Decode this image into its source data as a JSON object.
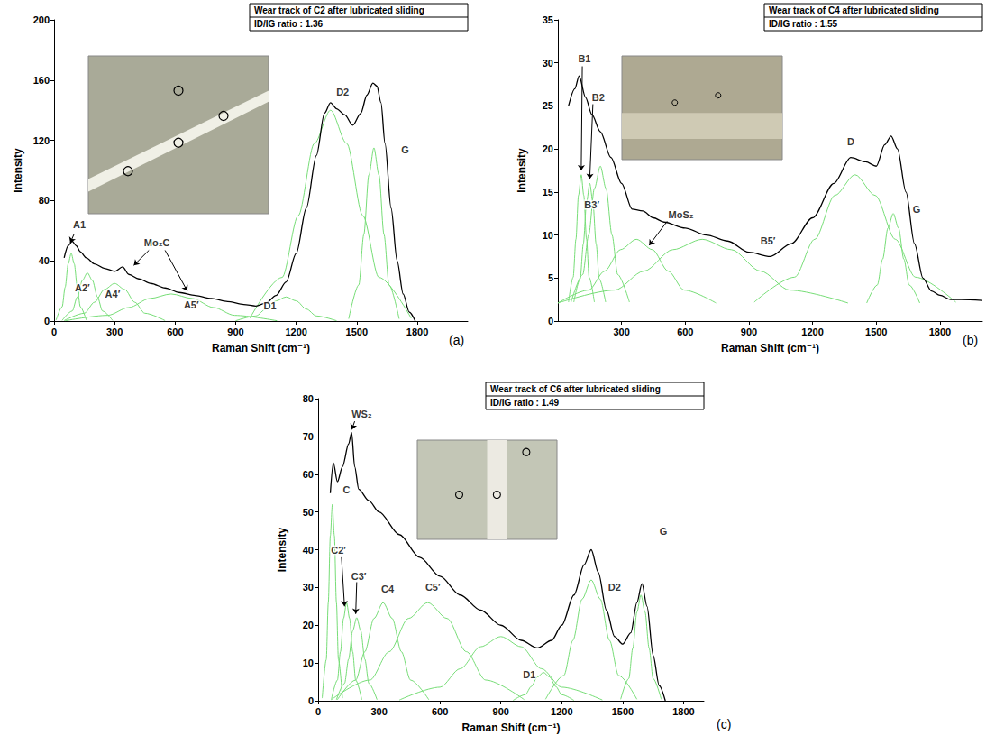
{
  "chart_data": [
    {
      "type": "line",
      "panel": "(a)",
      "title": "Wear track of C2 after lubricated sliding",
      "subtitle": "ID/IG ratio : 1.36",
      "x_label": "Raman Shift (cm⁻¹)",
      "y_label": "Intensity",
      "xlim": [
        0,
        2050
      ],
      "xticks": [
        0,
        300,
        600,
        900,
        1200,
        1500,
        1800
      ],
      "ylim": [
        0,
        200
      ],
      "yticks": [
        0,
        40,
        80,
        120,
        160,
        200
      ],
      "grid": false,
      "series": [
        {
          "color": "#000000",
          "x": [
            50,
            70,
            90,
            110,
            130,
            160,
            200,
            250,
            300,
            340,
            370,
            420,
            480,
            550,
            620,
            700,
            780,
            860,
            940,
            1000,
            1050,
            1100,
            1150,
            1200,
            1250,
            1300,
            1340,
            1370,
            1400,
            1440,
            1480,
            1520,
            1550,
            1580,
            1600,
            1620,
            1640,
            1670,
            1700,
            1730,
            1760,
            1790
          ],
          "values": [
            42,
            50,
            53,
            50,
            46,
            42,
            38,
            35,
            33,
            36,
            31,
            28,
            25,
            22,
            19,
            17,
            15,
            13,
            11,
            10,
            12,
            17,
            26,
            45,
            75,
            110,
            138,
            145,
            141,
            137,
            130,
            138,
            150,
            158,
            156,
            145,
            118,
            75,
            40,
            18,
            6,
            0
          ]
        },
        {
          "color": "#77dd77",
          "x": [
            10,
            40,
            55,
            70,
            85,
            100,
            115,
            130,
            160
          ],
          "values": [
            0.6,
            9.5,
            22.5,
            38,
            45,
            38,
            22.5,
            9.5,
            0.6
          ]
        },
        {
          "color": "#77dd77",
          "x": [
            40,
            90,
            115,
            140,
            165,
            190,
            215,
            240,
            290
          ],
          "values": [
            0.4,
            6.7,
            16,
            27,
            32,
            27,
            16,
            6.7,
            0.4
          ]
        },
        {
          "color": "#77dd77",
          "x": [
            50,
            150,
            200,
            250,
            300,
            350,
            400,
            450,
            550
          ],
          "values": [
            0.3,
            5.2,
            12.5,
            21,
            25,
            21,
            12.5,
            5.2,
            0.3
          ]
        },
        {
          "color": "#77dd77",
          "x": [
            55,
            265,
            370,
            475,
            580,
            685,
            790,
            895,
            1105
          ],
          "values": [
            0.2,
            3.8,
            9,
            15,
            18,
            15,
            9,
            3.8,
            0.2
          ]
        },
        {
          "color": "#77dd77",
          "x": [
            900,
            1000,
            1050,
            1100,
            1150,
            1200,
            1250,
            1300,
            1400
          ],
          "values": [
            0.2,
            3.4,
            8,
            13.4,
            16,
            13.4,
            8,
            3.4,
            0.2
          ]
        },
        {
          "color": "#77dd77",
          "x": [
            970,
            1130,
            1210,
            1290,
            1370,
            1450,
            1530,
            1610,
            1770
          ],
          "values": [
            1.8,
            29,
            70,
            118,
            140,
            118,
            70,
            29,
            1.8
          ]
        },
        {
          "color": "#77dd77",
          "x": [
            1460,
            1510,
            1535,
            1560,
            1585,
            1610,
            1635,
            1660,
            1710
          ],
          "values": [
            1.5,
            24,
            57.5,
            97,
            115,
            97,
            57.5,
            24,
            1.5
          ]
        }
      ],
      "annotations": [
        {
          "text": "A1",
          "x": 125,
          "y": 64,
          "arrows": [
            [
              [
                100,
                58
              ],
              [
                80,
                52
              ]
            ]
          ]
        },
        {
          "text": "A2′",
          "x": 140,
          "y": 22
        },
        {
          "text": "Mo₂C",
          "x": 510,
          "y": 52,
          "arrows": [
            [
              [
                470,
                47
              ],
              [
                395,
                37
              ]
            ],
            [
              [
                550,
                47
              ],
              [
                660,
                20
              ]
            ]
          ]
        },
        {
          "text": "A4′",
          "x": 290,
          "y": 18
        },
        {
          "text": "A5′",
          "x": 680,
          "y": 11
        },
        {
          "text": "D1",
          "x": 1070,
          "y": 10
        },
        {
          "text": "D2",
          "x": 1430,
          "y": 152
        },
        {
          "text": "G",
          "x": 1740,
          "y": 114
        }
      ]
    },
    {
      "type": "line",
      "panel": "(b)",
      "title": "Wear track of C4 after lubricated sliding",
      "subtitle": "ID/IG ratio : 1.55",
      "x_label": "Raman Shift (cm⁻¹)",
      "y_label": "Intensity",
      "xlim": [
        0,
        2000
      ],
      "xticks": [
        300,
        600,
        900,
        1200,
        1500,
        1800
      ],
      "ylim": [
        0,
        35
      ],
      "yticks": [
        0,
        5,
        10,
        15,
        20,
        25,
        30,
        35
      ],
      "grid": false,
      "series": [
        {
          "color": "#000000",
          "x": [
            50,
            80,
            100,
            130,
            160,
            200,
            250,
            300,
            350,
            400,
            450,
            500,
            600,
            700,
            800,
            900,
            1000,
            1100,
            1200,
            1300,
            1380,
            1450,
            1500,
            1540,
            1570,
            1600,
            1640,
            1680,
            1720,
            1760,
            1800,
            1850,
            1900,
            2000
          ],
          "values": [
            25,
            27,
            28.5,
            26,
            24,
            22,
            19,
            16,
            13,
            12.8,
            12,
            11.5,
            10.8,
            10,
            9.3,
            8,
            7.5,
            9,
            12,
            16,
            19,
            18.5,
            18,
            20.5,
            21.5,
            20,
            15,
            9,
            5,
            3.5,
            3,
            2.5,
            2.5,
            2.4
          ]
        },
        {
          "color": "#77dd77",
          "x": [
            50,
            72,
            85,
            97,
            110,
            122,
            135,
            147,
            172
          ],
          "values": [
            2.2,
            5.1,
            9.5,
            14.6,
            17,
            14.6,
            9.5,
            5.1,
            2.2
          ]
        },
        {
          "color": "#77dd77",
          "x": [
            75,
            105,
            120,
            135,
            150,
            165,
            180,
            195,
            225
          ],
          "values": [
            2.2,
            4.9,
            9,
            13.8,
            16,
            13.8,
            9,
            4.9,
            2.2
          ]
        },
        {
          "color": "#77dd77",
          "x": [
            62,
            117,
            145,
            172,
            200,
            227,
            255,
            282,
            337
          ],
          "values": [
            2.2,
            5.4,
            10,
            15.4,
            18,
            15.4,
            10,
            5.4,
            2.2
          ]
        },
        {
          "color": "#77dd77",
          "x": [
            0,
            145,
            220,
            295,
            370,
            445,
            520,
            595,
            745
          ],
          "values": [
            2.1,
            3.6,
            5.8,
            8.3,
            9.5,
            8.3,
            5.8,
            3.6,
            2.1
          ]
        },
        {
          "color": "#77dd77",
          "x": [
            0,
            268,
            405,
            542,
            680,
            817,
            955,
            1092,
            1367
          ],
          "values": [
            2.1,
            3.6,
            5.8,
            8.3,
            9.5,
            8.3,
            5.8,
            3.6,
            2.1
          ]
        },
        {
          "color": "#77dd77",
          "x": [
            925,
            1115,
            1210,
            1305,
            1400,
            1495,
            1590,
            1685,
            1875
          ],
          "values": [
            2.2,
            5.1,
            9.5,
            14.6,
            17,
            14.6,
            9.5,
            5.1,
            2.2
          ]
        },
        {
          "color": "#77dd77",
          "x": [
            1455,
            1505,
            1530,
            1555,
            1580,
            1605,
            1630,
            1655,
            1705
          ],
          "values": [
            2.1,
            4.2,
            7.2,
            10.8,
            12.5,
            10.8,
            7.2,
            4.2,
            2.1
          ]
        }
      ],
      "annotations": [
        {
          "text": "B1",
          "x": 125,
          "y": 30.5,
          "arrows": [
            [
              [
                115,
                29.6
              ],
              [
                110,
                17.5
              ]
            ]
          ]
        },
        {
          "text": "B2",
          "x": 190,
          "y": 26,
          "arrows": [
            [
              [
                165,
                25.2
              ],
              [
                150,
                16.5
              ]
            ]
          ]
        },
        {
          "text": "B3′",
          "x": 160,
          "y": 13.5
        },
        {
          "text": "MoS₂",
          "x": 580,
          "y": 12.4,
          "arrows": [
            [
              [
                515,
                11.6
              ],
              [
                430,
                8.8
              ]
            ]
          ]
        },
        {
          "text": "B5′",
          "x": 990,
          "y": 9.3
        },
        {
          "text": "D",
          "x": 1380,
          "y": 20.9
        },
        {
          "text": "G",
          "x": 1690,
          "y": 13
        }
      ]
    },
    {
      "type": "line",
      "panel": "(c)",
      "title": "Wear track of C6 after lubricated sliding",
      "subtitle": "ID/IG ratio : 1.49",
      "x_label": "Raman Shift (cm⁻¹)",
      "y_label": "Intensity",
      "xlim": [
        0,
        1900
      ],
      "xticks": [
        0,
        300,
        600,
        900,
        1200,
        1500,
        1800
      ],
      "ylim": [
        0,
        80
      ],
      "yticks": [
        0,
        10,
        20,
        30,
        40,
        50,
        60,
        70,
        80
      ],
      "grid": false,
      "series": [
        {
          "color": "#000000",
          "x": [
            60,
            75,
            95,
            120,
            150,
            165,
            180,
            200,
            250,
            300,
            400,
            500,
            600,
            700,
            800,
            900,
            1000,
            1080,
            1150,
            1200,
            1260,
            1310,
            1345,
            1380,
            1420,
            1460,
            1500,
            1540,
            1570,
            1595,
            1620,
            1650,
            1680,
            1710
          ],
          "values": [
            55,
            63,
            58,
            62,
            68,
            71,
            62,
            56,
            53,
            50,
            44,
            38,
            33,
            28,
            24,
            20,
            16,
            14,
            16,
            20,
            28,
            36,
            40,
            34,
            24,
            17,
            15,
            18,
            26,
            31,
            25,
            12,
            4,
            0
          ]
        },
        {
          "color": "#77dd77",
          "x": [
            20,
            40,
            50,
            60,
            70,
            80,
            90,
            100,
            120
          ],
          "values": [
            0.7,
            10.9,
            26,
            43.7,
            52,
            43.7,
            26,
            10.9,
            0.7
          ]
        },
        {
          "color": "#77dd77",
          "x": [
            65,
            95,
            110,
            125,
            140,
            155,
            170,
            185,
            215
          ],
          "values": [
            0.3,
            5.5,
            13,
            21.8,
            26,
            21.8,
            13,
            5.5,
            0.3
          ]
        },
        {
          "color": "#77dd77",
          "x": [
            90,
            130,
            150,
            170,
            190,
            210,
            230,
            250,
            290
          ],
          "values": [
            0.3,
            4.6,
            11,
            18.5,
            22,
            18.5,
            11,
            4.6,
            0.3
          ]
        },
        {
          "color": "#77dd77",
          "x": [
            95,
            185,
            230,
            275,
            320,
            365,
            410,
            455,
            545
          ],
          "values": [
            0.3,
            5.5,
            13,
            21.8,
            26,
            21.8,
            13,
            5.5,
            0.3
          ]
        },
        {
          "color": "#77dd77",
          "x": [
            65,
            255,
            350,
            445,
            540,
            635,
            730,
            825,
            1015
          ],
          "values": [
            0.3,
            5.5,
            13,
            21.8,
            26,
            21.8,
            13,
            5.5,
            0.3
          ]
        },
        {
          "color": "#77dd77",
          "x": [
            400,
            600,
            700,
            800,
            900,
            1000,
            1100,
            1200,
            1400
          ],
          "values": [
            0.2,
            3.6,
            8.5,
            14.3,
            17,
            14.3,
            8.5,
            3.6,
            0.2
          ]
        },
        {
          "color": "#77dd77",
          "x": [
            960,
            1020,
            1050,
            1080,
            1110,
            1140,
            1170,
            1200,
            1260
          ],
          "values": [
            0.1,
            1.6,
            3.8,
            6.3,
            7.5,
            6.3,
            3.8,
            1.6,
            0.1
          ]
        },
        {
          "color": "#77dd77",
          "x": [
            1120,
            1210,
            1255,
            1300,
            1345,
            1390,
            1435,
            1480,
            1570
          ],
          "values": [
            0.4,
            6.7,
            16,
            26.9,
            32,
            26.9,
            16,
            6.7,
            0.4
          ]
        },
        {
          "color": "#77dd77",
          "x": [
            1490,
            1530,
            1550,
            1570,
            1590,
            1610,
            1630,
            1650,
            1690
          ],
          "values": [
            0.4,
            5.9,
            14,
            23.5,
            28,
            23.5,
            14,
            5.9,
            0.4
          ]
        }
      ],
      "annotations": [
        {
          "text": "WS₂",
          "x": 215,
          "y": 76,
          "arrows": [
            [
              [
                180,
                74
              ],
              [
                166,
                71.8
              ]
            ]
          ]
        },
        {
          "text": "C",
          "x": 140,
          "y": 56
        },
        {
          "text": "C2′",
          "x": 100,
          "y": 40,
          "arrows": [
            [
              [
                115,
                38
              ],
              [
                130,
                25
              ]
            ]
          ]
        },
        {
          "text": "C3′",
          "x": 200,
          "y": 33,
          "arrows": [
            [
              [
                190,
                31.4
              ],
              [
                185,
                23
              ]
            ]
          ]
        },
        {
          "text": "C4",
          "x": 342,
          "y": 29.5
        },
        {
          "text": "C5′",
          "x": 565,
          "y": 30
        },
        {
          "text": "D1",
          "x": 1040,
          "y": 7
        },
        {
          "text": "D2",
          "x": 1460,
          "y": 30
        },
        {
          "text": "G",
          "x": 1700,
          "y": 45
        }
      ]
    }
  ]
}
